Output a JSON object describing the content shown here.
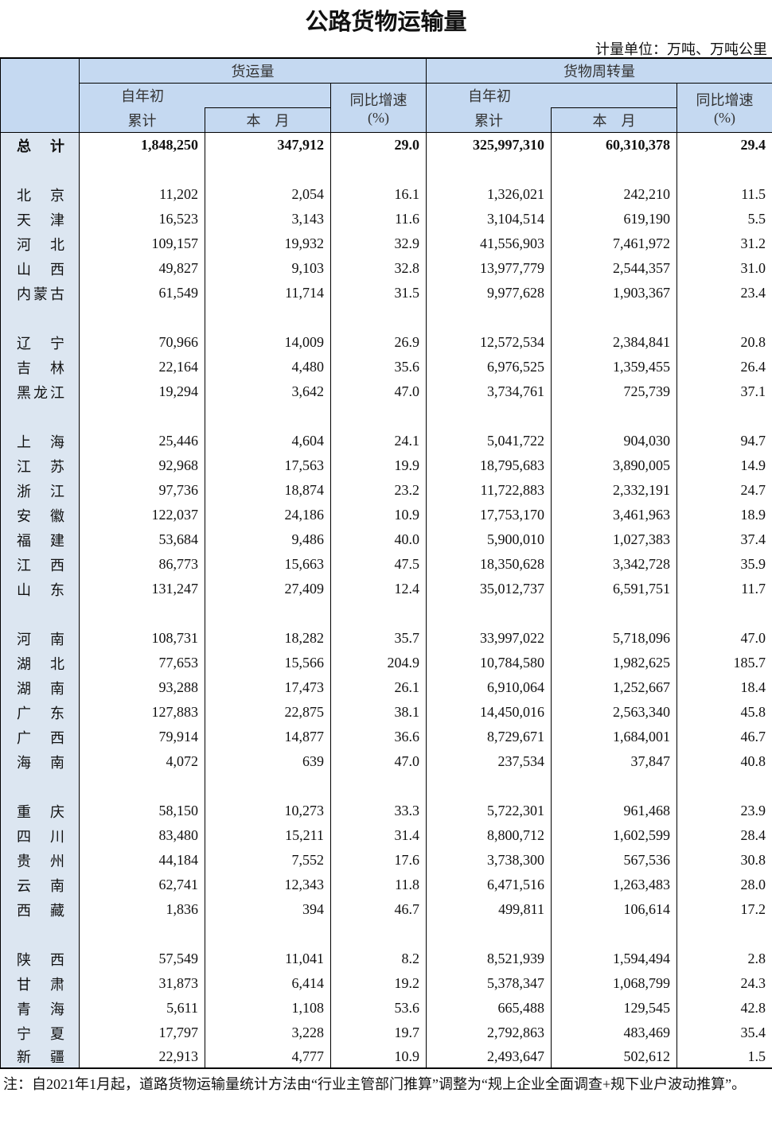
{
  "title": "公路货物运输量",
  "unit": "计量单位：万吨、万吨公里",
  "header": {
    "freight": "货运量",
    "turnover": "货物周转量",
    "cum_line1": "自年初",
    "cum_line2": "累计",
    "month": "本　月",
    "yoy_line1": "同比增速",
    "yoy_line2": "(%)"
  },
  "total": [
    "总　计",
    "1,848,250",
    "347,912",
    "29.0",
    "325,997,310",
    "60,310,378",
    "29.4"
  ],
  "groups": [
    [
      [
        "北　京",
        "11,202",
        "2,054",
        "16.1",
        "1,326,021",
        "242,210",
        "11.5"
      ],
      [
        "天　津",
        "16,523",
        "3,143",
        "11.6",
        "3,104,514",
        "619,190",
        "5.5"
      ],
      [
        "河　北",
        "109,157",
        "19,932",
        "32.9",
        "41,556,903",
        "7,461,972",
        "31.2"
      ],
      [
        "山　西",
        "49,827",
        "9,103",
        "32.8",
        "13,977,779",
        "2,544,357",
        "31.0"
      ],
      [
        "内蒙古",
        "61,549",
        "11,714",
        "31.5",
        "9,977,628",
        "1,903,367",
        "23.4"
      ]
    ],
    [
      [
        "辽　宁",
        "70,966",
        "14,009",
        "26.9",
        "12,572,534",
        "2,384,841",
        "20.8"
      ],
      [
        "吉　林",
        "22,164",
        "4,480",
        "35.6",
        "6,976,525",
        "1,359,455",
        "26.4"
      ],
      [
        "黑龙江",
        "19,294",
        "3,642",
        "47.0",
        "3,734,761",
        "725,739",
        "37.1"
      ]
    ],
    [
      [
        "上　海",
        "25,446",
        "4,604",
        "24.1",
        "5,041,722",
        "904,030",
        "94.7"
      ],
      [
        "江　苏",
        "92,968",
        "17,563",
        "19.9",
        "18,795,683",
        "3,890,005",
        "14.9"
      ],
      [
        "浙　江",
        "97,736",
        "18,874",
        "23.2",
        "11,722,883",
        "2,332,191",
        "24.7"
      ],
      [
        "安　徽",
        "122,037",
        "24,186",
        "10.9",
        "17,753,170",
        "3,461,963",
        "18.9"
      ],
      [
        "福　建",
        "53,684",
        "9,486",
        "40.0",
        "5,900,010",
        "1,027,383",
        "37.4"
      ],
      [
        "江　西",
        "86,773",
        "15,663",
        "47.5",
        "18,350,628",
        "3,342,728",
        "35.9"
      ],
      [
        "山　东",
        "131,247",
        "27,409",
        "12.4",
        "35,012,737",
        "6,591,751",
        "11.7"
      ]
    ],
    [
      [
        "河　南",
        "108,731",
        "18,282",
        "35.7",
        "33,997,022",
        "5,718,096",
        "47.0"
      ],
      [
        "湖　北",
        "77,653",
        "15,566",
        "204.9",
        "10,784,580",
        "1,982,625",
        "185.7"
      ],
      [
        "湖　南",
        "93,288",
        "17,473",
        "26.1",
        "6,910,064",
        "1,252,667",
        "18.4"
      ],
      [
        "广　东",
        "127,883",
        "22,875",
        "38.1",
        "14,450,016",
        "2,563,340",
        "45.8"
      ],
      [
        "广　西",
        "79,914",
        "14,877",
        "36.6",
        "8,729,671",
        "1,684,001",
        "46.7"
      ],
      [
        "海　南",
        "4,072",
        "639",
        "47.0",
        "237,534",
        "37,847",
        "40.8"
      ]
    ],
    [
      [
        "重　庆",
        "58,150",
        "10,273",
        "33.3",
        "5,722,301",
        "961,468",
        "23.9"
      ],
      [
        "四　川",
        "83,480",
        "15,211",
        "31.4",
        "8,800,712",
        "1,602,599",
        "28.4"
      ],
      [
        "贵　州",
        "44,184",
        "7,552",
        "17.6",
        "3,738,300",
        "567,536",
        "30.8"
      ],
      [
        "云　南",
        "62,741",
        "12,343",
        "11.8",
        "6,471,516",
        "1,263,483",
        "28.0"
      ],
      [
        "西　藏",
        "1,836",
        "394",
        "46.7",
        "499,811",
        "106,614",
        "17.2"
      ]
    ],
    [
      [
        "陕　西",
        "57,549",
        "11,041",
        "8.2",
        "8,521,939",
        "1,594,494",
        "2.8"
      ],
      [
        "甘　肃",
        "31,873",
        "6,414",
        "19.2",
        "5,378,347",
        "1,068,799",
        "24.3"
      ],
      [
        "青　海",
        "5,611",
        "1,108",
        "53.6",
        "665,488",
        "129,545",
        "42.8"
      ],
      [
        "宁　夏",
        "17,797",
        "3,228",
        "19.7",
        "2,792,863",
        "483,469",
        "35.4"
      ],
      [
        "新　疆",
        "22,913",
        "4,777",
        "10.9",
        "2,493,647",
        "502,612",
        "1.5"
      ]
    ]
  ],
  "note": "注：自2021年1月起，道路货物运输量统计方法由“行业主管部门推算”调整为“规上企业全面调查+规下业户波动推算”。",
  "colors": {
    "header_bg": "#c5d9f1",
    "region_bg": "#dce6f1"
  }
}
